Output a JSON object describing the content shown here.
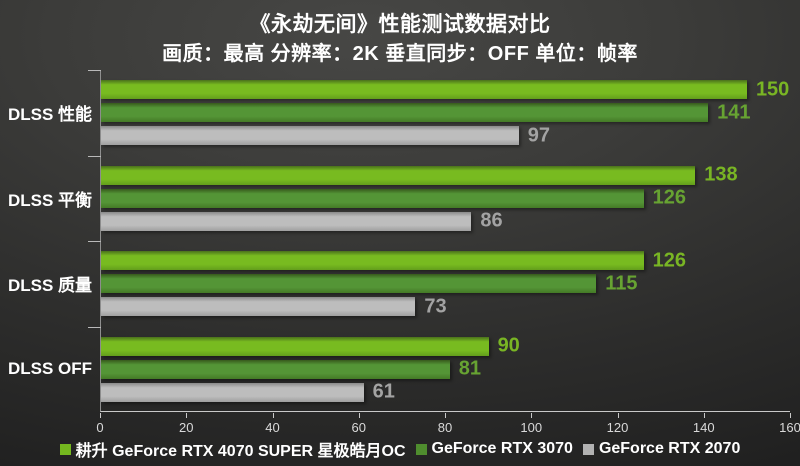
{
  "title": "《永劫无间》性能测试数据对比",
  "subtitle": "画质：最高 分辨率：2K 垂直同步：OFF 单位：帧率",
  "colors": {
    "background_dark": "#1f1f1f",
    "background_light": "#474745",
    "text_primary": "#ffffff",
    "axis_line": "#c9c9c9",
    "tick_label": "#d9d9d9",
    "series1_green": "#74b71f",
    "series2_green": "#4f8d2e",
    "series3_gray": "#b2b2b2"
  },
  "chart_data": {
    "type": "bar",
    "orientation": "horizontal",
    "title": "《永劫无间》性能测试数据对比",
    "subtitle": "画质：最高 分辨率：2K 垂直同步：OFF 单位：帧率",
    "unit": "帧率",
    "categories": [
      "DLSS 性能",
      "DLSS 平衡",
      "DLSS 质量",
      "DLSS OFF"
    ],
    "series": [
      {
        "name": "耕升 GeForce RTX 4070 SUPER 星极皓月OC",
        "values": [
          150,
          138,
          126,
          90
        ],
        "color": "#74b71f",
        "label_color": "#79b524",
        "gradient": [
          "#4a701c",
          "#78bb20",
          "#639e1c"
        ]
      },
      {
        "name": "GeForce RTX 3070",
        "values": [
          141,
          126,
          115,
          81
        ],
        "color": "#4f8d2e",
        "label_color": "#67a332",
        "gradient": [
          "#37591c",
          "#549536",
          "#447a26"
        ]
      },
      {
        "name": "GeForce RTX 2070",
        "values": [
          97,
          86,
          73,
          61
        ],
        "color": "#b2b2b2",
        "label_color": "#a3a3a3",
        "gradient": [
          "#8a8a8a",
          "#bdbdbd",
          "#9f9f9f"
        ]
      }
    ],
    "xlim": [
      0,
      160
    ],
    "x_ticks": [
      "0",
      "20",
      "40",
      "60",
      "80",
      "100",
      "120",
      "140",
      "160"
    ],
    "grid": false,
    "value_labels": true,
    "legend_position": "bottom"
  }
}
